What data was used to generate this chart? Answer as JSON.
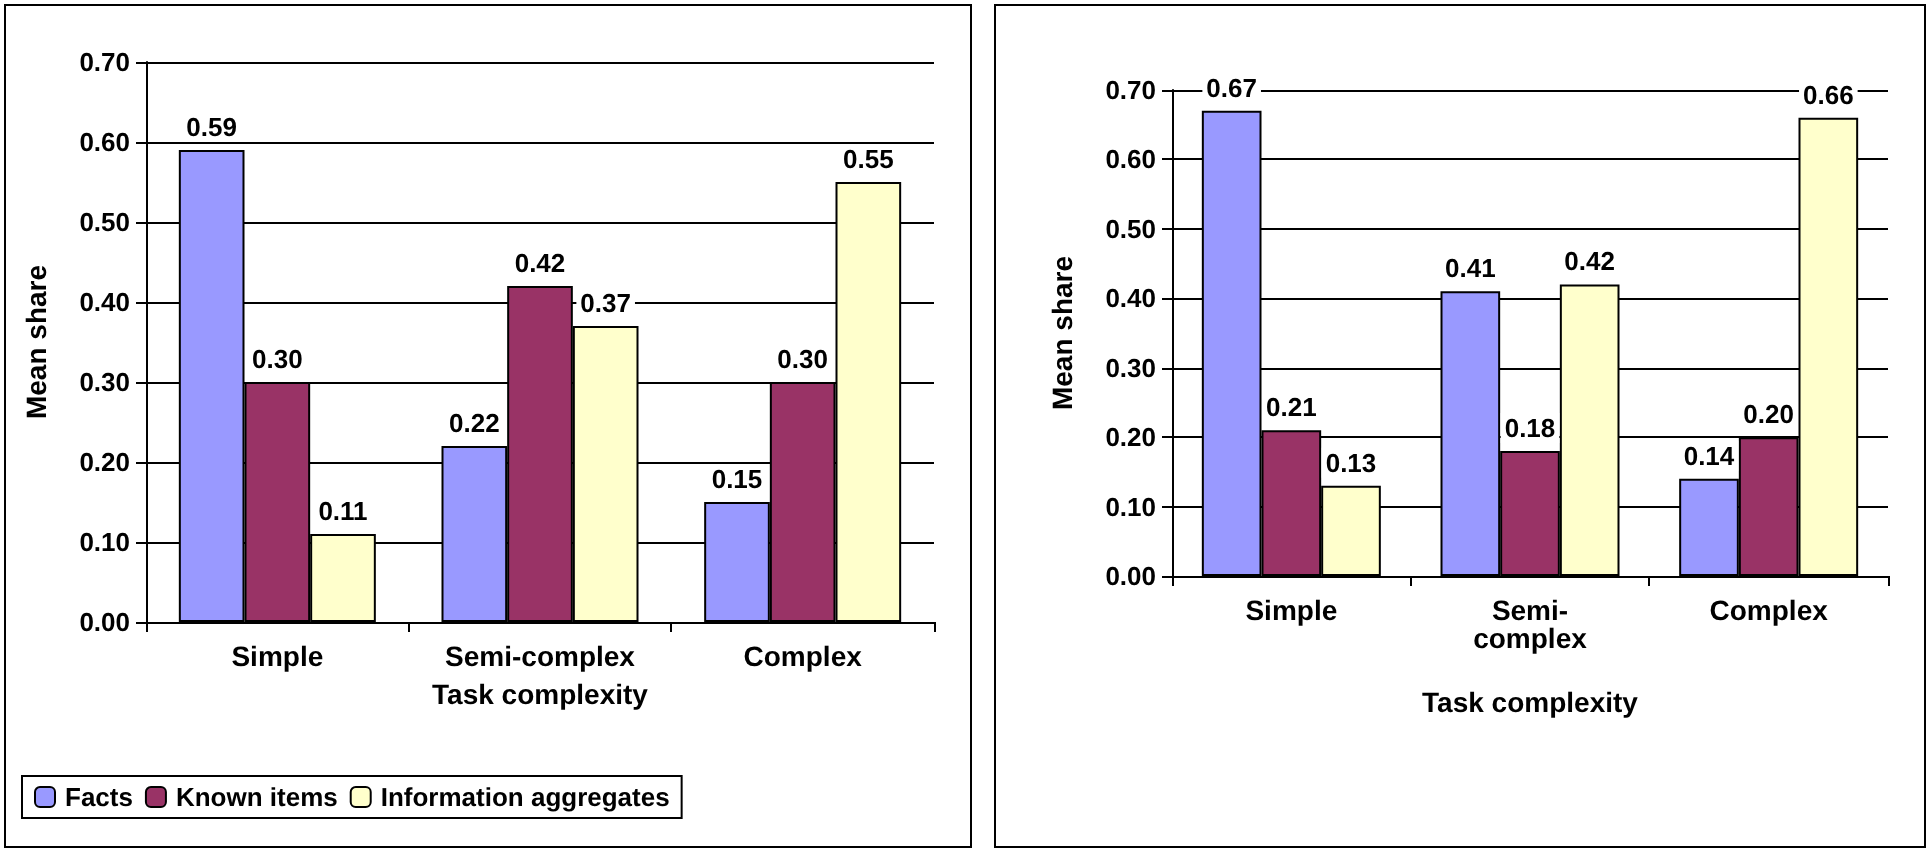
{
  "chart_data": [
    {
      "type": "bar",
      "xlabel": "Task complexity",
      "ylabel": "Mean share",
      "categories": [
        "Simple",
        "Semi-complex",
        "Complex"
      ],
      "series": [
        {
          "name": "Facts",
          "color": "#9999ff",
          "values": [
            0.59,
            0.22,
            0.15
          ],
          "value_labels": [
            "0.59",
            "0.22",
            "0.15"
          ]
        },
        {
          "name": "Known items",
          "color": "#993366",
          "values": [
            0.3,
            0.42,
            0.3
          ],
          "value_labels": [
            "0.30",
            "0.42",
            "0.30"
          ]
        },
        {
          "name": "Information aggregates",
          "color": "#ffffcc",
          "values": [
            0.11,
            0.37,
            0.55
          ],
          "value_labels": [
            "0.11",
            "0.37",
            "0.55"
          ]
        }
      ],
      "ylim": [
        0,
        0.7
      ],
      "yticks": [
        {
          "value": 0,
          "label": "0.00"
        },
        {
          "value": 0.1,
          "label": "0.10"
        },
        {
          "value": 0.2,
          "label": "0.20"
        },
        {
          "value": 0.3,
          "label": "0.30"
        },
        {
          "value": 0.4,
          "label": "0.40"
        },
        {
          "value": 0.5,
          "label": "0.50"
        },
        {
          "value": 0.6,
          "label": "0.60"
        },
        {
          "value": 0.7,
          "label": "0.70"
        }
      ],
      "grid": "y",
      "legend": "bottom"
    },
    {
      "type": "bar",
      "xlabel": "Task complexity",
      "ylabel": "Mean share",
      "categories": [
        "Simple",
        "Semi-complex",
        "Complex"
      ],
      "series": [
        {
          "color": "#9999ff",
          "values": [
            0.67,
            0.41,
            0.14
          ],
          "value_labels": [
            "0.67",
            "0.41",
            "0.14"
          ]
        },
        {
          "color": "#993366",
          "values": [
            0.21,
            0.18,
            0.2
          ],
          "value_labels": [
            "0.21",
            "0.18",
            "0.20"
          ]
        },
        {
          "color": "#ffffcc",
          "values": [
            0.13,
            0.42,
            0.66
          ],
          "value_labels": [
            "0.13",
            "0.42",
            "0.66"
          ]
        }
      ],
      "ylim": [
        0,
        0.7
      ],
      "yticks": [
        {
          "value": 0,
          "label": "0.00"
        },
        {
          "value": 0.1,
          "label": "0.10"
        },
        {
          "value": 0.2,
          "label": "0.20"
        },
        {
          "value": 0.3,
          "label": "0.30"
        },
        {
          "value": 0.4,
          "label": "0.40"
        },
        {
          "value": 0.5,
          "label": "0.50"
        },
        {
          "value": 0.6,
          "label": "0.60"
        },
        {
          "value": 0.7,
          "label": "0.70"
        }
      ],
      "grid": "y"
    }
  ]
}
